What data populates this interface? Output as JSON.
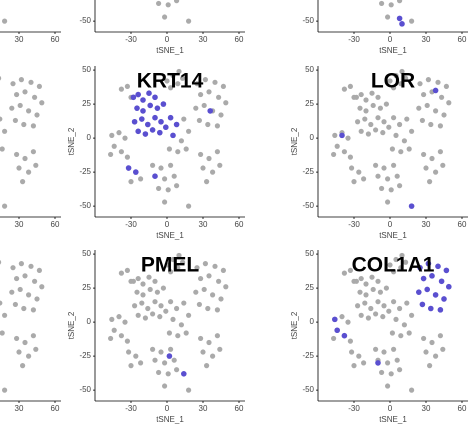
{
  "chart_data": {
    "type": "scatter",
    "xlim": [
      -60,
      65
    ],
    "ylim": [
      -58,
      53
    ],
    "color": "#aaaaaa",
    "highlight_color": "#5a4fd0",
    "x": [
      -28,
      -24,
      -20,
      -15,
      -10,
      -25,
      -20,
      -14,
      -8,
      -3,
      -27,
      -21,
      -16,
      -10,
      -5,
      -24,
      -18,
      -12,
      -6,
      -1,
      0,
      5,
      9,
      13,
      3,
      10,
      25,
      32,
      40,
      47,
      28,
      35,
      43,
      49,
      24,
      31,
      38,
      45,
      27,
      34,
      42,
      3,
      8,
      14,
      5,
      12,
      18,
      2,
      9,
      16,
      -46,
      -40,
      -35,
      -44,
      -38,
      -33,
      -47,
      -38,
      -33,
      -30,
      -12,
      -5,
      3,
      -10,
      -2,
      6,
      -7,
      1,
      8,
      -32,
      -26,
      -30,
      -22,
      28,
      35,
      42,
      30,
      38,
      44,
      33,
      18,
      -2
    ],
    "y": [
      30,
      32,
      28,
      33,
      30,
      22,
      20,
      24,
      22,
      25,
      12,
      14,
      10,
      15,
      12,
      5,
      3,
      6,
      4,
      8,
      42,
      46,
      40,
      44,
      37,
      49,
      40,
      43,
      41,
      38,
      32,
      34,
      30,
      26,
      22,
      24,
      20,
      17,
      13,
      10,
      9,
      15,
      10,
      14,
      2,
      -2,
      5,
      -8,
      -10,
      -8,
      2,
      4,
      0,
      -6,
      -10,
      -14,
      -12,
      36,
      38,
      30,
      -20,
      -22,
      -20,
      -28,
      -30,
      -28,
      -37,
      -38,
      -35,
      -22,
      -25,
      -32,
      -30,
      -12,
      -15,
      -10,
      -22,
      -25,
      -20,
      -32,
      -50,
      -47
    ],
    "panels": [
      {
        "xticks": [
          30,
          60
        ]
      },
      {
        "xticks": [
          -30,
          0,
          30,
          60
        ],
        "yticks": [
          -50
        ],
        "xlabel": "tSNE_1"
      },
      {
        "xticks": [
          -30,
          0,
          30,
          60
        ],
        "yticks": [
          -50
        ],
        "xlabel": "tSNE_1",
        "highlight": {
          "x": [
            8,
            10
          ],
          "y": [
            -48,
            -52
          ]
        }
      },
      {
        "xticks": [
          30,
          60
        ]
      },
      {
        "title": "KRT14",
        "xticks": [
          -30,
          0,
          30,
          60
        ],
        "yticks": [
          -50,
          -25,
          0,
          25,
          50
        ],
        "xlabel": "tSNE_1",
        "ylabel": "tSNE_2",
        "highlight": {
          "x": [
            -28,
            -24,
            -20,
            -15,
            -10,
            -25,
            -20,
            -14,
            -8,
            -3,
            -27,
            -21,
            -16,
            -10,
            -5,
            -24,
            -18,
            -12,
            -6,
            -1,
            3,
            8,
            5,
            -32,
            -10,
            -26,
            36
          ],
          "y": [
            30,
            32,
            28,
            33,
            30,
            22,
            20,
            24,
            22,
            25,
            12,
            14,
            10,
            15,
            12,
            5,
            3,
            6,
            4,
            8,
            15,
            10,
            2,
            -22,
            -28,
            -25,
            20
          ]
        }
      },
      {
        "title": "LOR",
        "xticks": [
          -30,
          0,
          30,
          60
        ],
        "yticks": [
          -50,
          -25,
          0,
          25,
          50
        ],
        "xlabel": "tSNE_1",
        "ylabel": "tSNE_2",
        "highlight": {
          "x": [
            18,
            38,
            -40
          ],
          "y": [
            -50,
            35,
            2
          ]
        }
      },
      {
        "xticks": [
          30,
          60
        ]
      },
      {
        "title": "PMEL",
        "xticks": [
          -30,
          0,
          30,
          60
        ],
        "yticks": [
          -50,
          -25,
          0,
          25,
          50
        ],
        "xlabel": "tSNE_1",
        "ylabel": "tSNE_2",
        "highlight": {
          "x": [
            14,
            2
          ],
          "y": [
            -38,
            -25
          ]
        }
      },
      {
        "title": "COL1A1",
        "xticks": [
          -30,
          0,
          30,
          60
        ],
        "yticks": [
          -50,
          -25,
          0,
          25,
          50
        ],
        "xlabel": "tSNE_1",
        "ylabel": "tSNE_2",
        "highlight": {
          "x": [
            25,
            32,
            40,
            47,
            28,
            35,
            43,
            49,
            24,
            31,
            38,
            45,
            27,
            34,
            42,
            -44,
            -38,
            -46,
            -10
          ],
          "y": [
            40,
            43,
            41,
            38,
            32,
            34,
            30,
            26,
            22,
            24,
            20,
            17,
            13,
            10,
            9,
            -6,
            -10,
            2,
            -30
          ]
        }
      }
    ]
  }
}
